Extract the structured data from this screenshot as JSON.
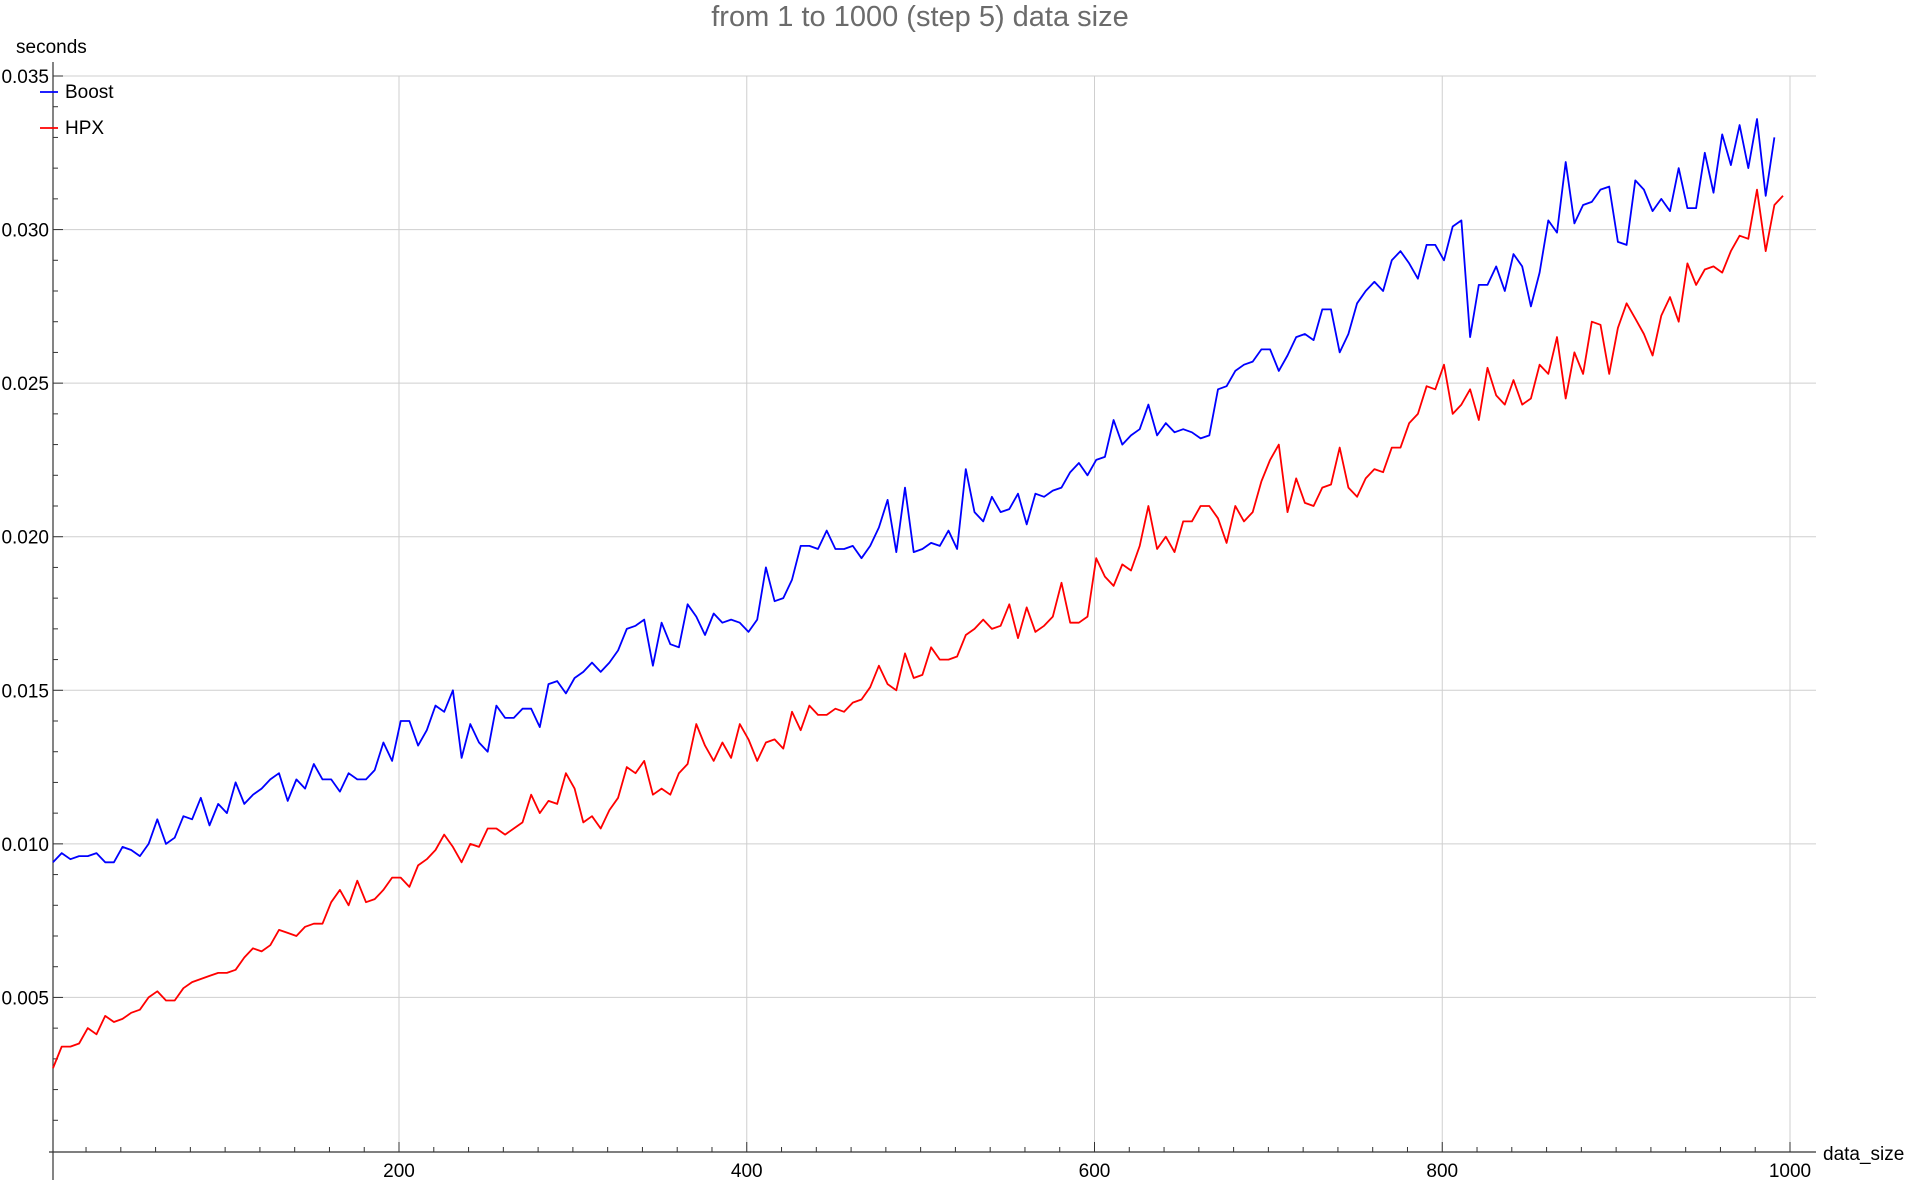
{
  "chart_data": {
    "type": "line",
    "title": "from 1 to 1000 (step 5) data size",
    "xlabel": "data_size",
    "ylabel": "seconds",
    "xlim": [
      1,
      1000
    ],
    "ylim": [
      0,
      0.035
    ],
    "x_ticks": [
      200,
      400,
      600,
      800,
      1000
    ],
    "x_tick_labels": [
      "200",
      "400",
      "600",
      "800",
      "1000"
    ],
    "y_ticks": [
      0.005,
      0.01,
      0.015,
      0.02,
      0.025,
      0.03,
      0.035
    ],
    "y_tick_labels": [
      "0.005",
      "0.010",
      "0.015",
      "0.020",
      "0.025",
      "0.030",
      "0.035"
    ],
    "grid": true,
    "legend_position": "top-left",
    "x_step": 5,
    "x_start": 1,
    "series": [
      {
        "name": "Boost",
        "color": "#0000ff",
        "values": [
          0.0094,
          0.0097,
          0.0095,
          0.0096,
          0.0096,
          0.0097,
          0.0094,
          0.0094,
          0.0099,
          0.0098,
          0.0096,
          0.01,
          0.0108,
          0.01,
          0.0102,
          0.0109,
          0.0108,
          0.0115,
          0.0106,
          0.0113,
          0.011,
          0.012,
          0.0113,
          0.0116,
          0.0118,
          0.0121,
          0.0123,
          0.0114,
          0.0121,
          0.0118,
          0.0126,
          0.0121,
          0.0121,
          0.0117,
          0.0123,
          0.0121,
          0.0121,
          0.0124,
          0.0133,
          0.0127,
          0.014,
          0.014,
          0.0132,
          0.0137,
          0.0145,
          0.0143,
          0.015,
          0.0128,
          0.0139,
          0.0133,
          0.013,
          0.0145,
          0.0141,
          0.0141,
          0.0144,
          0.0144,
          0.0138,
          0.0152,
          0.0153,
          0.0149,
          0.0154,
          0.0156,
          0.0159,
          0.0156,
          0.0159,
          0.0163,
          0.017,
          0.0171,
          0.0173,
          0.0158,
          0.0172,
          0.0165,
          0.0164,
          0.0178,
          0.0174,
          0.0168,
          0.0175,
          0.0172,
          0.0173,
          0.0172,
          0.0169,
          0.0173,
          0.019,
          0.0179,
          0.018,
          0.0186,
          0.0197,
          0.0197,
          0.0196,
          0.0202,
          0.0196,
          0.0196,
          0.0197,
          0.0193,
          0.0197,
          0.0203,
          0.0212,
          0.0195,
          0.0216,
          0.0195,
          0.0196,
          0.0198,
          0.0197,
          0.0202,
          0.0196,
          0.0222,
          0.0208,
          0.0205,
          0.0213,
          0.0208,
          0.0209,
          0.0214,
          0.0204,
          0.0214,
          0.0213,
          0.0215,
          0.0216,
          0.0221,
          0.0224,
          0.022,
          0.0225,
          0.0226,
          0.0238,
          0.023,
          0.0233,
          0.0235,
          0.0243,
          0.0233,
          0.0237,
          0.0234,
          0.0235,
          0.0234,
          0.0232,
          0.0233,
          0.0248,
          0.0249,
          0.0254,
          0.0256,
          0.0257,
          0.0261,
          0.0261,
          0.0254,
          0.0259,
          0.0265,
          0.0266,
          0.0264,
          0.0274,
          0.0274,
          0.026,
          0.0266,
          0.0276,
          0.028,
          0.0283,
          0.028,
          0.029,
          0.0293,
          0.0289,
          0.0284,
          0.0295,
          0.0295,
          0.029,
          0.0301,
          0.0303,
          0.0265,
          0.0282,
          0.0282,
          0.0288,
          0.028,
          0.0292,
          0.0288,
          0.0275,
          0.0286,
          0.0303,
          0.0299,
          0.0322,
          0.0302,
          0.0308,
          0.0309,
          0.0313,
          0.0314,
          0.0296,
          0.0295,
          0.0316,
          0.0313,
          0.0306,
          0.031,
          0.0306,
          0.032,
          0.0307,
          0.0307,
          0.0325,
          0.0312,
          0.0331,
          0.0321,
          0.0334,
          0.032,
          0.0336,
          0.0311,
          0.033
        ]
      },
      {
        "name": "HPX",
        "color": "#ff0000",
        "values": [
          0.0027,
          0.0034,
          0.0034,
          0.0035,
          0.004,
          0.0038,
          0.0044,
          0.0042,
          0.0043,
          0.0045,
          0.0046,
          0.005,
          0.0052,
          0.0049,
          0.0049,
          0.0053,
          0.0055,
          0.0056,
          0.0057,
          0.0058,
          0.0058,
          0.0059,
          0.0063,
          0.0066,
          0.0065,
          0.0067,
          0.0072,
          0.0071,
          0.007,
          0.0073,
          0.0074,
          0.0074,
          0.0081,
          0.0085,
          0.008,
          0.0088,
          0.0081,
          0.0082,
          0.0085,
          0.0089,
          0.0089,
          0.0086,
          0.0093,
          0.0095,
          0.0098,
          0.0103,
          0.0099,
          0.0094,
          0.01,
          0.0099,
          0.0105,
          0.0105,
          0.0103,
          0.0105,
          0.0107,
          0.0116,
          0.011,
          0.0114,
          0.0113,
          0.0123,
          0.0118,
          0.0107,
          0.0109,
          0.0105,
          0.0111,
          0.0115,
          0.0125,
          0.0123,
          0.0127,
          0.0116,
          0.0118,
          0.0116,
          0.0123,
          0.0126,
          0.0139,
          0.0132,
          0.0127,
          0.0133,
          0.0128,
          0.0139,
          0.0134,
          0.0127,
          0.0133,
          0.0134,
          0.0131,
          0.0143,
          0.0137,
          0.0145,
          0.0142,
          0.0142,
          0.0144,
          0.0143,
          0.0146,
          0.0147,
          0.0151,
          0.0158,
          0.0152,
          0.015,
          0.0162,
          0.0154,
          0.0155,
          0.0164,
          0.016,
          0.016,
          0.0161,
          0.0168,
          0.017,
          0.0173,
          0.017,
          0.0171,
          0.0178,
          0.0167,
          0.0177,
          0.0169,
          0.0171,
          0.0174,
          0.0185,
          0.0172,
          0.0172,
          0.0174,
          0.0193,
          0.0187,
          0.0184,
          0.0191,
          0.0189,
          0.0197,
          0.021,
          0.0196,
          0.02,
          0.0195,
          0.0205,
          0.0205,
          0.021,
          0.021,
          0.0206,
          0.0198,
          0.021,
          0.0205,
          0.0208,
          0.0218,
          0.0225,
          0.023,
          0.0208,
          0.0219,
          0.0211,
          0.021,
          0.0216,
          0.0217,
          0.0229,
          0.0216,
          0.0213,
          0.0219,
          0.0222,
          0.0221,
          0.0229,
          0.0229,
          0.0237,
          0.024,
          0.0249,
          0.0248,
          0.0256,
          0.024,
          0.0243,
          0.0248,
          0.0238,
          0.0255,
          0.0246,
          0.0243,
          0.0251,
          0.0243,
          0.0245,
          0.0256,
          0.0253,
          0.0265,
          0.0245,
          0.026,
          0.0253,
          0.027,
          0.0269,
          0.0253,
          0.0268,
          0.0276,
          0.0271,
          0.0266,
          0.0259,
          0.0272,
          0.0278,
          0.027,
          0.0289,
          0.0282,
          0.0287,
          0.0288,
          0.0286,
          0.0293,
          0.0298,
          0.0297,
          0.0313,
          0.0293,
          0.0308,
          0.0311
        ]
      }
    ]
  }
}
